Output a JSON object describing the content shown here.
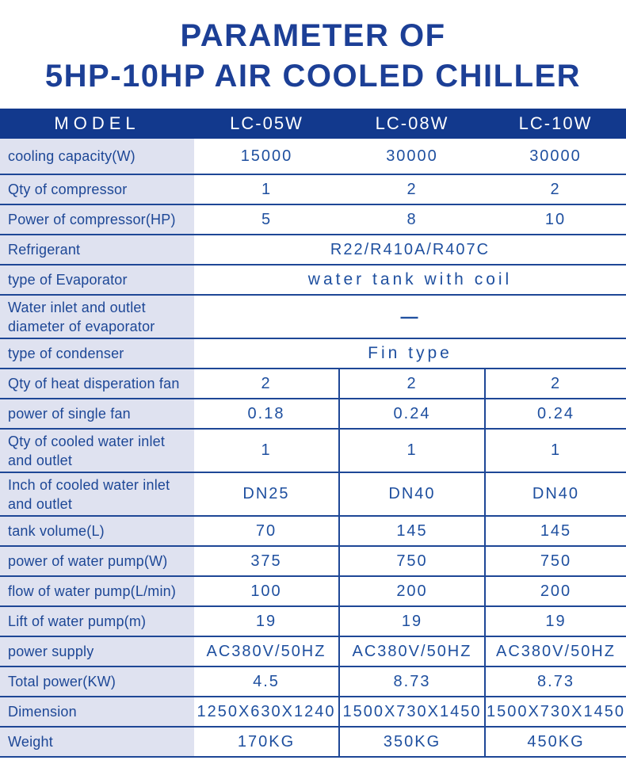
{
  "title": {
    "line1": "PARAMETER OF",
    "line2": "5HP-10HP AIR COOLED CHILLER"
  },
  "colors": {
    "title_text": "#1c3f96",
    "header_bg": "#12398d",
    "header_text": "#ffffff",
    "label_bg": "#dfe2f0",
    "label_text": "#1d4796",
    "value_text": "#1e4f9f",
    "divider": "#1e4796"
  },
  "table": {
    "header": {
      "model_label": "MODEL",
      "columns": [
        "LC-05W",
        "LC-08W",
        "LC-10W"
      ]
    },
    "rows": [
      {
        "label_lines": [
          "cooling capacity(W)"
        ],
        "values": [
          "15000",
          "30000",
          "30000"
        ],
        "dividers": false
      },
      {
        "label_lines": [
          "Qty of compressor"
        ],
        "values": [
          "1",
          "2",
          "2"
        ],
        "dividers": false
      },
      {
        "label_lines": [
          "Power of compressor(HP)"
        ],
        "values": [
          "5",
          "8",
          "10"
        ],
        "dividers": false
      },
      {
        "label_lines": [
          "Refrigerant"
        ],
        "span_value": "R22/R410A/R407C"
      },
      {
        "label_lines": [
          "type of Evaporator"
        ],
        "span_value": "water tank with coil",
        "wide_spacing": true
      },
      {
        "label_lines": [
          "Water inlet and outlet",
          "diameter of evaporator"
        ],
        "span_value": "—",
        "dash": true
      },
      {
        "label_lines": [
          "type of condenser"
        ],
        "span_value": "Fin type",
        "wide_spacing": true
      },
      {
        "label_lines": [
          "Qty of heat disperation fan"
        ],
        "values": [
          "2",
          "2",
          "2"
        ],
        "dividers": true
      },
      {
        "label_lines": [
          "power of single fan"
        ],
        "values": [
          "0.18",
          "0.24",
          "0.24"
        ],
        "dividers": true
      },
      {
        "label_lines": [
          "Qty of cooled water inlet",
          "and outlet"
        ],
        "values": [
          "1",
          "1",
          "1"
        ],
        "dividers": true
      },
      {
        "label_lines": [
          "Inch of cooled water inlet",
          "and outlet"
        ],
        "values": [
          "DN25",
          "DN40",
          "DN40"
        ],
        "dividers": true
      },
      {
        "label_lines": [
          "tank volume(L)"
        ],
        "values": [
          "70",
          "145",
          "145"
        ],
        "dividers": true
      },
      {
        "label_lines": [
          "power of water pump(W)"
        ],
        "values": [
          "375",
          "750",
          "750"
        ],
        "dividers": true
      },
      {
        "label_lines": [
          "flow of water pump(L/min)"
        ],
        "values": [
          "100",
          "200",
          "200"
        ],
        "dividers": true
      },
      {
        "label_lines": [
          "Lift of water pump(m)"
        ],
        "values": [
          "19",
          "19",
          "19"
        ],
        "dividers": true
      },
      {
        "label_lines": [
          "power supply"
        ],
        "values": [
          "AC380V/50HZ",
          "AC380V/50HZ",
          "AC380V/50HZ"
        ],
        "dividers": true
      },
      {
        "label_lines": [
          "Total power(KW)"
        ],
        "values": [
          "4.5",
          "8.73",
          "8.73"
        ],
        "dividers": true
      },
      {
        "label_lines": [
          "Dimension"
        ],
        "values": [
          "1250X630X1240",
          "1500X730X1450",
          "1500X730X1450"
        ],
        "dividers": true
      },
      {
        "label_lines": [
          "Weight"
        ],
        "values": [
          "170KG",
          "350KG",
          "450KG"
        ],
        "dividers": true
      }
    ]
  }
}
